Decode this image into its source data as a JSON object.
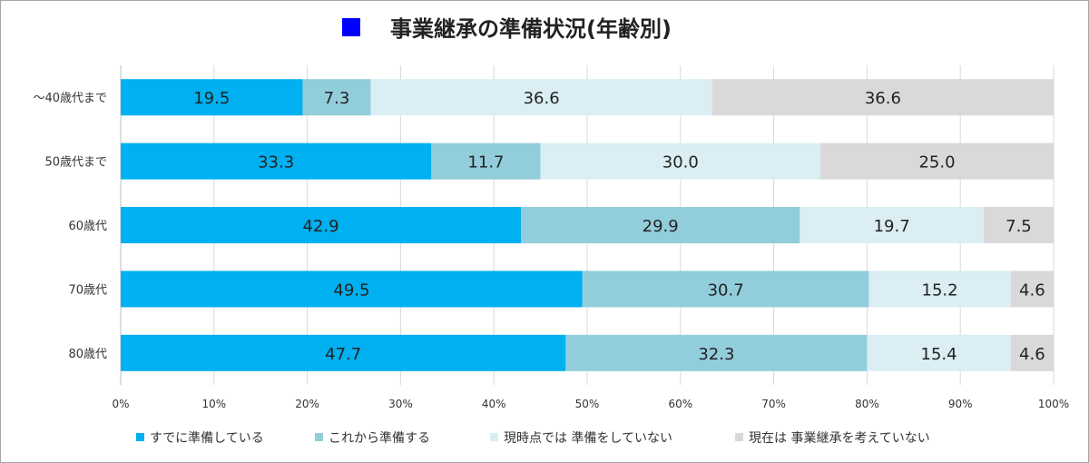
{
  "chart_data": {
    "type": "bar",
    "orientation": "horizontal",
    "stacked": true,
    "title": "事業継承の準備状況(年齢別)",
    "title_marker_color": "#0000ff",
    "categories": [
      "～40歳代まで",
      "50歳代まで",
      "60歳代",
      "70歳代",
      "80歳代"
    ],
    "series": [
      {
        "name": "すでに準備している",
        "color": "#00b0f0",
        "values": [
          19.5,
          33.3,
          42.9,
          49.5,
          47.7
        ]
      },
      {
        "name": "これから準備する",
        "color": "#92cddc",
        "values": [
          7.3,
          11.7,
          29.9,
          30.7,
          32.3
        ]
      },
      {
        "name": "現時点では 準備をしていない",
        "color": "#daeef3",
        "values": [
          36.6,
          30.0,
          19.7,
          15.2,
          15.4
        ]
      },
      {
        "name": "現在は 事業継承を考えていない",
        "color": "#d9d9d9",
        "values": [
          36.6,
          25.0,
          7.5,
          4.6,
          4.6
        ]
      }
    ],
    "value_labels": [
      [
        "19.5",
        "7.3",
        "36.6",
        "36.6"
      ],
      [
        "33.3",
        "11.7",
        "30.0",
        "25.0"
      ],
      [
        "42.9",
        "29.9",
        "19.7",
        "7.5"
      ],
      [
        "49.5",
        "30.7",
        "15.2",
        "4.6"
      ],
      [
        "47.7",
        "32.3",
        "15.4",
        "4.6"
      ]
    ],
    "xlim": [
      0,
      100
    ],
    "xticks": [
      "0%",
      "10%",
      "20%",
      "30%",
      "40%",
      "50%",
      "60%",
      "70%",
      "80%",
      "90%",
      "100%"
    ],
    "grid": true,
    "legend_position": "bottom"
  }
}
